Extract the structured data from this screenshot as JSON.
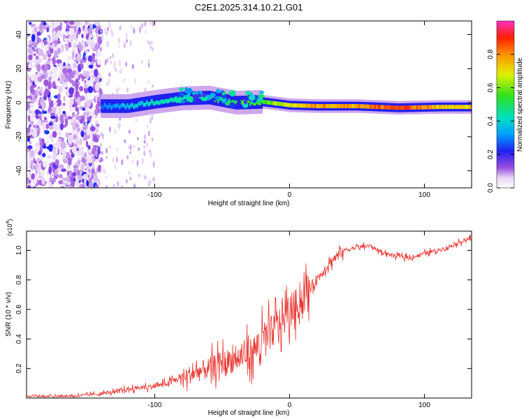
{
  "title": "C2E1.2025.314.10.21.G01",
  "chart_data": [
    {
      "type": "heatmap",
      "xlabel": "Height of straight line (km)",
      "ylabel": "Frequency (Hz)",
      "xlim": [
        -195,
        135
      ],
      "ylim": [
        -50,
        48
      ],
      "xticks": [
        -100,
        0,
        100
      ],
      "yticks": [
        -40,
        -20,
        0,
        20,
        40
      ],
      "colorbar": {
        "label": "Normalized spectral amplitude",
        "range": [
          0,
          1
        ],
        "ticks": [
          "0.0",
          "0.2",
          "0.4",
          "0.6",
          "0.8"
        ],
        "tick_values": [
          0.0,
          0.2,
          0.4,
          0.6,
          0.8
        ]
      },
      "ridge": [
        {
          "x": -140,
          "y": -2.0,
          "amp": 0.3
        },
        {
          "x": -120,
          "y": -2.0,
          "amp": 0.4
        },
        {
          "x": -100,
          "y": 0.5,
          "amp": 0.45
        },
        {
          "x": -80,
          "y": 2.5,
          "amp": 0.45
        },
        {
          "x": -60,
          "y": 3.0,
          "amp": 0.5
        },
        {
          "x": -40,
          "y": 0.0,
          "amp": 0.55
        },
        {
          "x": -20,
          "y": 0.5,
          "amp": 0.6
        },
        {
          "x": 0,
          "y": -1.5,
          "amp": 0.75
        },
        {
          "x": 20,
          "y": -2.0,
          "amp": 0.85
        },
        {
          "x": 50,
          "y": -2.0,
          "amp": 0.85
        },
        {
          "x": 80,
          "y": -3.0,
          "amp": 0.95
        },
        {
          "x": 110,
          "y": -2.5,
          "amp": 0.8
        },
        {
          "x": 135,
          "y": -2.5,
          "amp": 0.75
        }
      ]
    },
    {
      "type": "line",
      "xlabel": "Height of straight line (km)",
      "ylabel": "SNR (10 * v/v)",
      "scale_label": "(x10",
      "scale_exp": "4",
      "scale_suffix": ")",
      "xlim": [
        -195,
        135
      ],
      "ylim": [
        0.0,
        1.13
      ],
      "xticks": [
        -100,
        0,
        100
      ],
      "yticks": [
        0.2,
        0.4,
        0.6,
        0.8,
        1.0
      ],
      "series": [
        {
          "name": "SNR",
          "color": "#e8322c",
          "x": [
            -195,
            -170,
            -150,
            -140,
            -130,
            -120,
            -110,
            -100,
            -90,
            -80,
            -70,
            -60,
            -50,
            -40,
            -30,
            -20,
            -10,
            0,
            10,
            20,
            30,
            40,
            50,
            60,
            70,
            80,
            90,
            100,
            110,
            120,
            130,
            135
          ],
          "y": [
            0.01,
            0.01,
            0.02,
            0.03,
            0.04,
            0.06,
            0.07,
            0.08,
            0.1,
            0.14,
            0.17,
            0.2,
            0.24,
            0.26,
            0.3,
            0.38,
            0.48,
            0.58,
            0.68,
            0.8,
            0.92,
            1.0,
            1.02,
            1.03,
            0.98,
            0.96,
            0.95,
            0.98,
            1.0,
            1.03,
            1.07,
            1.08
          ]
        }
      ]
    }
  ]
}
